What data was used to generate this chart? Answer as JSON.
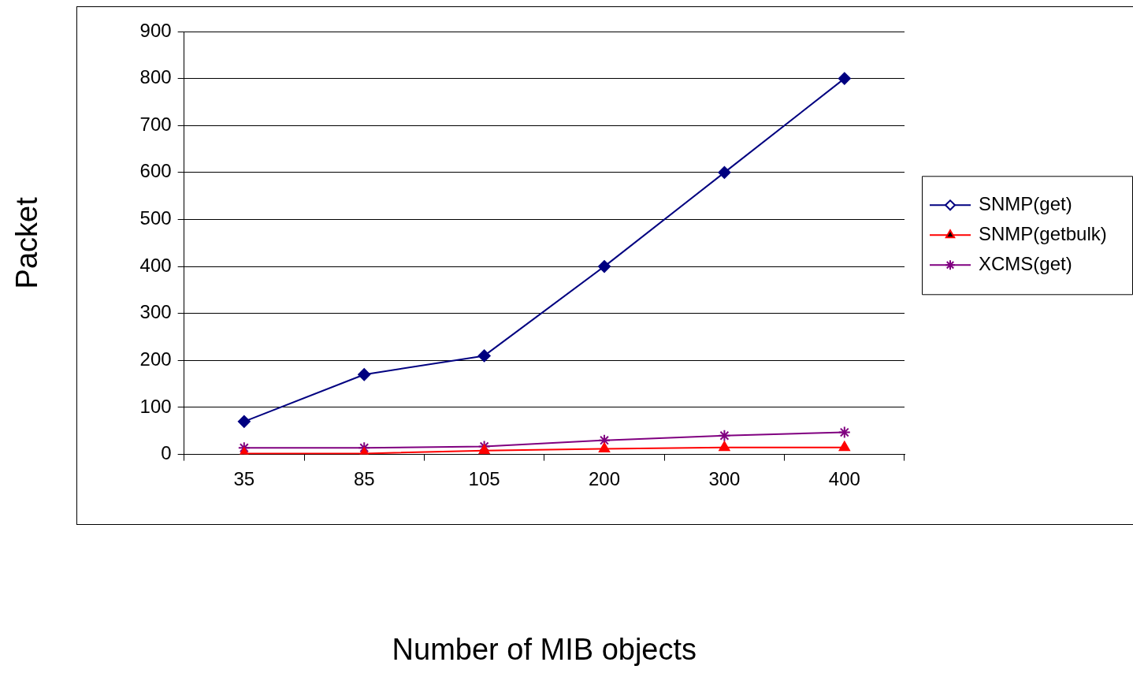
{
  "chart_data": {
    "type": "line",
    "xlabel": "Number of MIB objects",
    "ylabel": "Packet",
    "categories": [
      "35",
      "85",
      "105",
      "200",
      "300",
      "400"
    ],
    "series": [
      {
        "name": "SNMP(get)",
        "color": "#000080",
        "marker": "diamond",
        "values": [
          70,
          170,
          210,
          400,
          600,
          800
        ]
      },
      {
        "name": "SNMP(getbulk)",
        "color": "#ff0000",
        "marker": "triangle",
        "values": [
          2,
          2,
          8,
          12,
          15,
          15
        ]
      },
      {
        "name": "XCMS(get)",
        "color": "#800080",
        "marker": "cross",
        "values": [
          14,
          14,
          17,
          30,
          40,
          47
        ]
      }
    ],
    "ylim": [
      0,
      900
    ],
    "yticks": [
      0,
      100,
      200,
      300,
      400,
      500,
      600,
      700,
      800,
      900
    ],
    "grid": "y",
    "legend": "right",
    "line_style": "solid"
  }
}
